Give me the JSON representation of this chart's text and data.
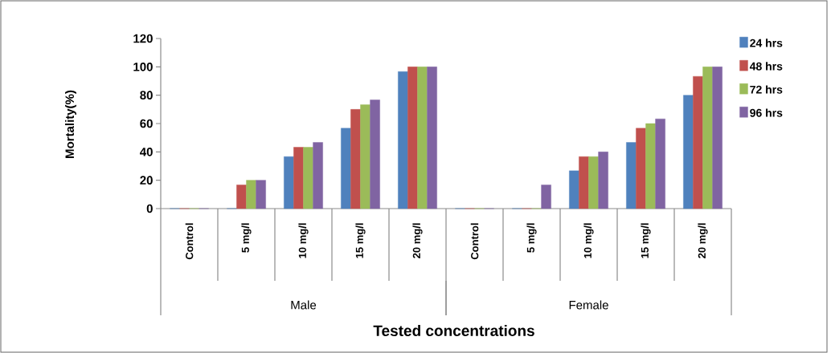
{
  "chart_data": {
    "type": "bar",
    "xlabel": "Tested concentrations",
    "ylabel": "Mortality(%)",
    "categories": [
      "Control",
      "5 mg/l",
      "10 mg/l",
      "15 mg/l",
      "20 mg/l",
      "Control",
      "5 mg/l",
      "10 mg/l",
      "15 mg/l",
      "20 mg/l"
    ],
    "series": [
      {
        "name": "24 hrs",
        "color": "#4f81bd",
        "values": [
          0,
          0,
          36.7,
          56.7,
          96.7,
          0,
          0,
          26.7,
          46.7,
          80
        ]
      },
      {
        "name": "48 hrs",
        "color": "#c0504d",
        "values": [
          0,
          16.7,
          43.3,
          70,
          100,
          0,
          0,
          36.7,
          56.7,
          93.3
        ]
      },
      {
        "name": "72 hrs",
        "color": "#9bbb59",
        "values": [
          0,
          20,
          43.3,
          73.3,
          100,
          0,
          0,
          36.7,
          60,
          100
        ]
      },
      {
        "name": "96 hrs",
        "color": "#8064a2",
        "values": [
          0,
          20,
          46.7,
          76.7,
          100,
          0,
          16.7,
          40,
          63.3,
          100
        ]
      }
    ],
    "ylim": [
      0,
      120
    ],
    "yticks": [
      0,
      20,
      40,
      60,
      80,
      100,
      120
    ],
    "legend": "right",
    "annotations": [
      "Male",
      "Female"
    ]
  }
}
